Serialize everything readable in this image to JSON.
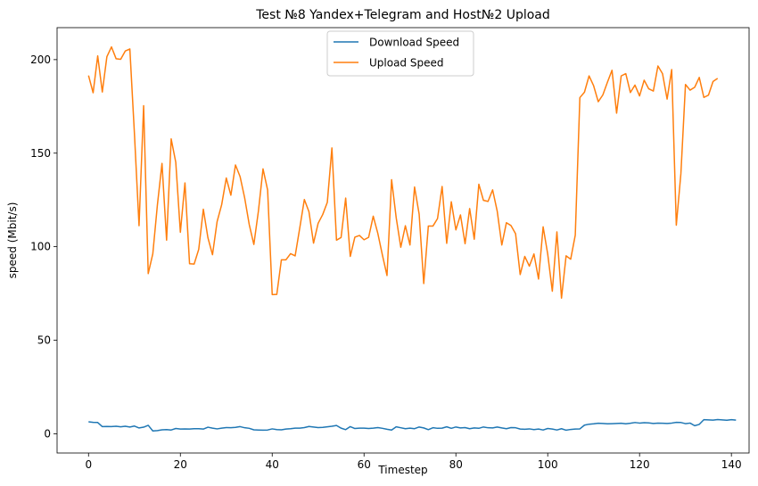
{
  "chart_data": {
    "type": "line",
    "title": "Test №8 Yandex+Telegram and Host№2 Upload",
    "xlabel": "Timestep",
    "ylabel": "speed (Mbit/s)",
    "xlim": [
      -6.85,
      143.85
    ],
    "ylim": [
      -10.3,
      217.1
    ],
    "xticks": [
      0,
      20,
      40,
      60,
      80,
      100,
      120,
      140
    ],
    "yticks": [
      0,
      50,
      100,
      150,
      200
    ],
    "grid": false,
    "legend_position": "upper center",
    "series": [
      {
        "name": "Download Speed",
        "color": "#1f77b4",
        "values": [
          6.4,
          6.1,
          6.0,
          3.8,
          3.9,
          3.8,
          4.0,
          3.7,
          4.0,
          3.6,
          4.1,
          3.1,
          3.5,
          4.5,
          1.5,
          1.7,
          2.1,
          2.2,
          2.0,
          2.8,
          2.5,
          2.6,
          2.5,
          2.7,
          2.7,
          2.5,
          3.5,
          3.0,
          2.6,
          3.0,
          3.3,
          3.2,
          3.4,
          3.8,
          3.2,
          2.9,
          2.1,
          2.0,
          1.9,
          2.0,
          2.6,
          2.2,
          2.1,
          2.5,
          2.7,
          3.0,
          3.0,
          3.3,
          3.9,
          3.6,
          3.3,
          3.4,
          3.7,
          4.0,
          4.4,
          3.0,
          2.2,
          3.8,
          2.8,
          3.0,
          3.0,
          2.8,
          3.0,
          3.3,
          2.9,
          2.4,
          2.0,
          3.7,
          3.2,
          2.7,
          3.0,
          2.7,
          3.6,
          3.1,
          2.2,
          3.2,
          2.9,
          3.0,
          3.7,
          2.9,
          3.6,
          3.1,
          3.3,
          2.7,
          3.1,
          2.9,
          3.6,
          3.2,
          3.1,
          3.6,
          3.1,
          2.7,
          3.3,
          3.2,
          2.5,
          2.4,
          2.6,
          2.2,
          2.5,
          2.0,
          2.8,
          2.5,
          2.0,
          2.7,
          1.9,
          2.3,
          2.5,
          2.6,
          4.6,
          5.1,
          5.3,
          5.6,
          5.5,
          5.3,
          5.4,
          5.5,
          5.6,
          5.3,
          5.6,
          6.0,
          5.7,
          5.9,
          5.8,
          5.5,
          5.7,
          5.6,
          5.5,
          5.7,
          6.1,
          6.0,
          5.4,
          5.7,
          4.3,
          5.0,
          7.5,
          7.4,
          7.3,
          7.6,
          7.4,
          7.2,
          7.5,
          7.3
        ]
      },
      {
        "name": "Upload Speed",
        "color": "#ff7f0e",
        "values": [
          191.5,
          182.3,
          202.0,
          182.7,
          201.6,
          206.8,
          200.5,
          200.2,
          204.6,
          205.7,
          160.2,
          111.2,
          175.4,
          85.6,
          96.2,
          122.4,
          144.5,
          103.5,
          157.6,
          145.1,
          107.7,
          134.1,
          90.9,
          90.7,
          98.6,
          120.0,
          104.8,
          95.7,
          113.4,
          122.5,
          136.7,
          127.5,
          143.7,
          137.5,
          126.1,
          111.8,
          101.2,
          119.1,
          141.6,
          130.3,
          74.4,
          74.5,
          93.0,
          93.0,
          96.3,
          95.1,
          110.0,
          125.2,
          118.7,
          101.9,
          112.5,
          117.2,
          123.7,
          152.8,
          103.5,
          104.9,
          126.0,
          94.8,
          105.1,
          106.0,
          103.7,
          105.0,
          116.3,
          107.1,
          95.5,
          84.6,
          135.8,
          115.5,
          99.7,
          111.2,
          100.9,
          131.9,
          117.4,
          80.3,
          111.0,
          111.0,
          115.0,
          132.2,
          101.8,
          124.0,
          109.0,
          117.0,
          101.6,
          120.4,
          104.0,
          133.4,
          124.8,
          124.2,
          130.4,
          119.0,
          100.9,
          112.8,
          111.3,
          106.9,
          85.1,
          94.8,
          89.6,
          96.1,
          82.7,
          110.6,
          96.0,
          76.2,
          107.9,
          72.5,
          95.1,
          93.3,
          106.2,
          179.7,
          182.6,
          191.3,
          186.0,
          177.5,
          181.1,
          187.9,
          194.3,
          171.4,
          191.3,
          192.5,
          182.4,
          186.4,
          180.6,
          189.0,
          184.4,
          183.2,
          196.6,
          192.5,
          178.9,
          194.7,
          111.5,
          139.0,
          186.7,
          183.7,
          185.2,
          190.5,
          179.8,
          181.0,
          188.3,
          190.0
        ]
      }
    ]
  }
}
